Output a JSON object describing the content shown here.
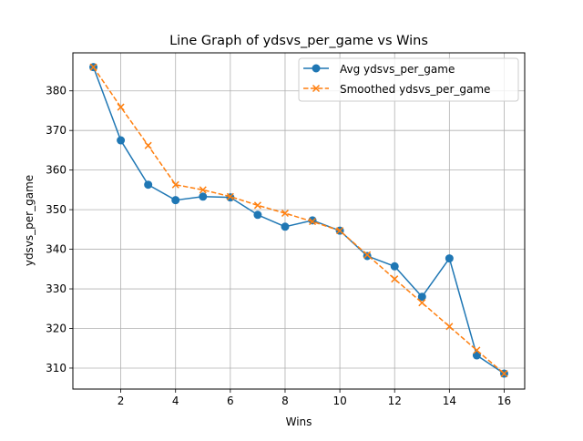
{
  "chart_data": {
    "type": "line",
    "title": "Line Graph of ydsvs_per_game vs Wins",
    "xlabel": "Wins",
    "ylabel": "ydsvs_per_game",
    "x": [
      1,
      2,
      3,
      4,
      5,
      6,
      7,
      8,
      9,
      10,
      11,
      12,
      13,
      14,
      15,
      16
    ],
    "xlim": [
      0.25,
      16.75
    ],
    "ylim": [
      304.7,
      389.6
    ],
    "x_ticks": [
      2,
      4,
      6,
      8,
      10,
      12,
      14,
      16
    ],
    "y_ticks": [
      310,
      320,
      330,
      340,
      350,
      360,
      370,
      380
    ],
    "grid": true,
    "legend_position": "top-right",
    "series": [
      {
        "name": "Avg ydsvs_per_game",
        "color": "#1f77b4",
        "line_style": "solid",
        "marker": "circle",
        "values": [
          386.0,
          367.5,
          356.3,
          352.4,
          353.3,
          353.1,
          348.7,
          345.7,
          347.3,
          344.7,
          338.3,
          335.7,
          328.0,
          337.7,
          313.2,
          308.6
        ]
      },
      {
        "name": "Smoothed ydsvs_per_game",
        "color": "#ff7f0e",
        "line_style": "dashed",
        "marker": "x",
        "values": [
          386.0,
          375.9,
          366.2,
          356.3,
          355.0,
          353.3,
          351.1,
          349.1,
          347.0,
          344.7,
          338.6,
          332.5,
          326.5,
          320.5,
          314.5,
          308.6
        ]
      }
    ]
  }
}
